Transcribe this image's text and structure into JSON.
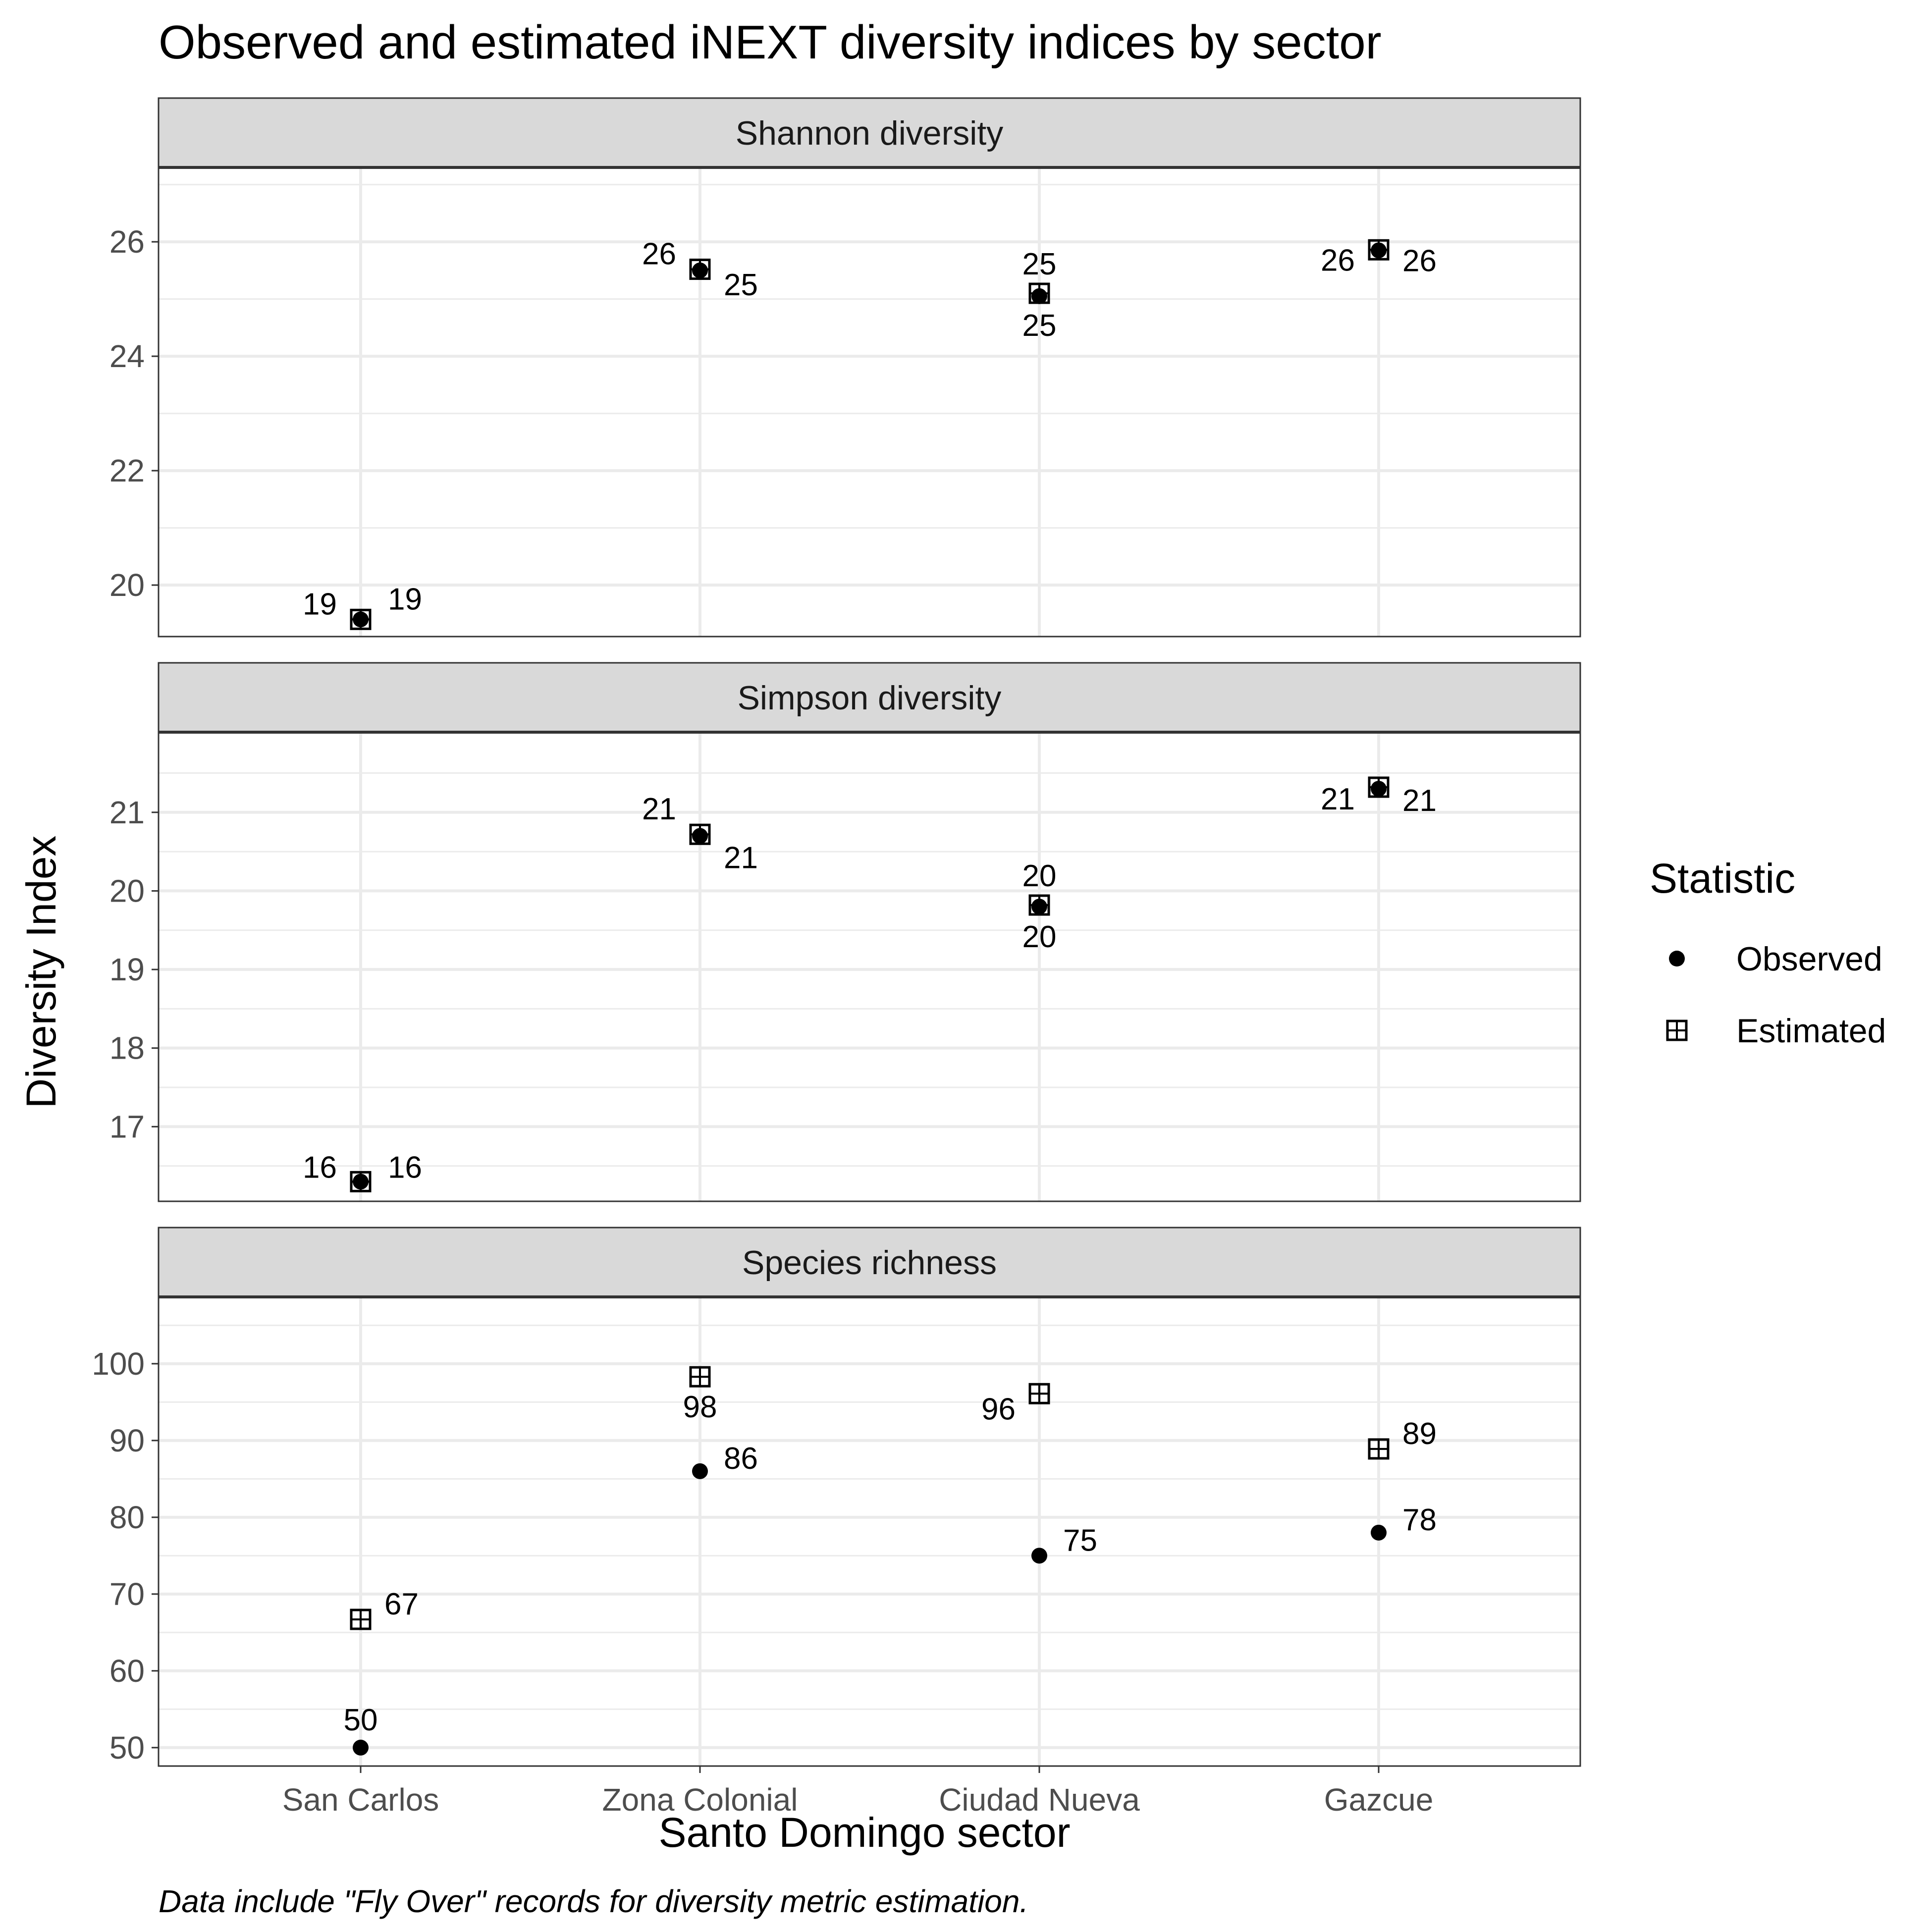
{
  "chart_data": {
    "type": "scatter",
    "title": "Observed and estimated iNEXT diversity indices by sector",
    "xlabel": "Santo Domingo sector",
    "ylabel": "Diversity Index",
    "caption": "Data include \"Fly Over\" records for diversity metric estimation.",
    "categories": [
      "San Carlos",
      "Zona Colonial",
      "Ciudad Nueva",
      "Gazcue"
    ],
    "legend": {
      "title": "Statistic",
      "position": "right",
      "entries": [
        {
          "name": "Observed",
          "shape": "filled-circle"
        },
        {
          "name": "Estimated",
          "shape": "boxed-plus-square"
        }
      ]
    },
    "grid": true,
    "facets": [
      {
        "name": "Shannon diversity",
        "ylim": [
          19.1,
          27.3
        ],
        "yticks": [
          20,
          22,
          24,
          26
        ],
        "series": [
          {
            "name": "Observed",
            "values": [
              19.4,
              25.5,
              25.05,
              25.85
            ],
            "labels": [
              "19",
              "25",
              "25",
              "26"
            ]
          },
          {
            "name": "Estimated",
            "values": [
              19.4,
              25.52,
              25.1,
              25.86
            ],
            "labels": [
              "19",
              "26",
              "25",
              "26"
            ]
          }
        ]
      },
      {
        "name": "Simpson diversity",
        "ylim": [
          16.05,
          22.02
        ],
        "yticks": [
          17,
          18,
          19,
          20,
          21
        ],
        "series": [
          {
            "name": "Observed",
            "values": [
              16.3,
              20.7,
              19.8,
              21.3
            ],
            "labels": [
              "16",
              "21",
              "20",
              "21"
            ]
          },
          {
            "name": "Estimated",
            "values": [
              16.3,
              20.72,
              19.82,
              21.32
            ],
            "labels": [
              "16",
              "21",
              "20",
              "21"
            ]
          }
        ]
      },
      {
        "name": "Species richness",
        "ylim": [
          47.6,
          108.7
        ],
        "yticks": [
          50,
          60,
          70,
          80,
          90,
          100
        ],
        "series": [
          {
            "name": "Observed",
            "values": [
              50,
              86,
              75,
              78
            ],
            "labels": [
              "50",
              "86",
              "75",
              "78"
            ]
          },
          {
            "name": "Estimated",
            "values": [
              66.7,
              98.3,
              96.1,
              88.9
            ],
            "labels": [
              "67",
              "98",
              "96",
              "89"
            ]
          }
        ]
      }
    ]
  },
  "colors": {
    "point": "#000000",
    "grid": "#ebebeb",
    "strip_fill": "#d9d9d9",
    "panel_border": "#333333"
  }
}
